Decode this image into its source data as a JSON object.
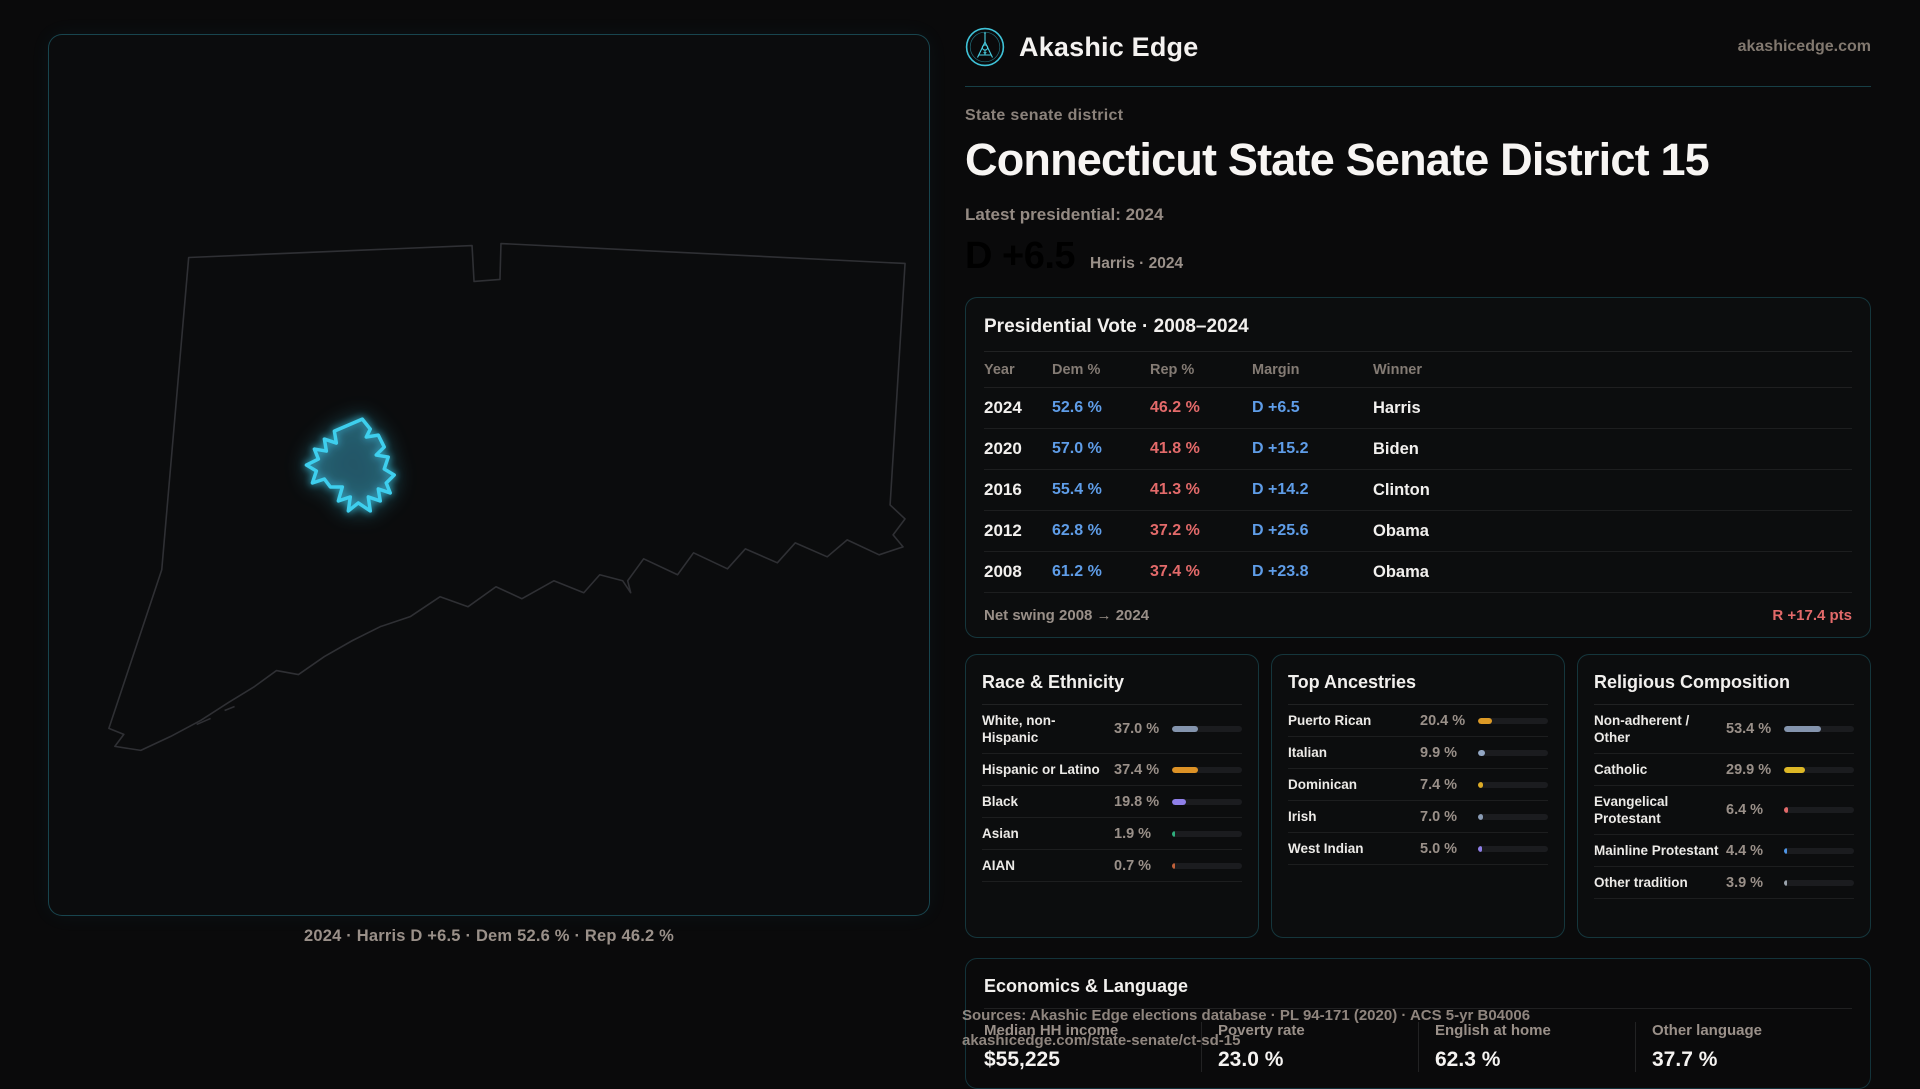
{
  "brand": {
    "name": "Akashic Edge",
    "domain": "akashicedge.com"
  },
  "header": {
    "kicker": "State senate district",
    "title": "Connecticut State Senate District 15",
    "latest_label": "Latest presidential: 2024",
    "margin_value": "D +6.5",
    "margin_context": "Harris · 2024"
  },
  "map": {
    "caption": "2024 · Harris D +6.5 · Dem 52.6 % · Rep 46.2 %",
    "outline_color": "#2f3034",
    "district_color": "#3ecfee",
    "district_fill": "rgba(70,140,180,0.20)"
  },
  "presidential_table": {
    "title": "Presidential Vote · 2008–2024",
    "columns": [
      "Year",
      "Dem %",
      "Rep %",
      "Margin",
      "Winner"
    ],
    "rows": [
      {
        "year": "2024",
        "dem": "52.6 %",
        "rep": "46.2 %",
        "margin": "D +6.5",
        "winner": "Harris"
      },
      {
        "year": "2020",
        "dem": "57.0 %",
        "rep": "41.8 %",
        "margin": "D +15.2",
        "winner": "Biden"
      },
      {
        "year": "2016",
        "dem": "55.4 %",
        "rep": "41.3 %",
        "margin": "D +14.2",
        "winner": "Clinton"
      },
      {
        "year": "2012",
        "dem": "62.8 %",
        "rep": "37.2 %",
        "margin": "D +25.6",
        "winner": "Obama"
      },
      {
        "year": "2008",
        "dem": "61.2 %",
        "rep": "37.4 %",
        "margin": "D +23.8",
        "winner": "Obama"
      }
    ],
    "footer": {
      "label": "Net swing 2008 → 2024",
      "value": "R +17.4 pts"
    }
  },
  "panels": [
    {
      "title": "Race & Ethnicity",
      "rows": [
        {
          "label": "White, non-Hispanic",
          "value": "37.0 %",
          "pct": 37.0,
          "color": "#8494ad"
        },
        {
          "label": "Hispanic or Latino",
          "value": "37.4 %",
          "pct": 37.4,
          "color": "#dd9226"
        },
        {
          "label": "Black",
          "value": "19.8 %",
          "pct": 19.8,
          "color": "#8f7fe8"
        },
        {
          "label": "Asian",
          "value": "1.9 %",
          "pct": 1.9,
          "color": "#2fae7d"
        },
        {
          "label": "AIAN",
          "value": "0.7 %",
          "pct": 0.7,
          "color": "#c0603a"
        }
      ]
    },
    {
      "title": "Top Ancestries",
      "rows": [
        {
          "label": "Puerto Rican",
          "value": "20.4 %",
          "pct": 20.4,
          "color": "#dd9a26"
        },
        {
          "label": "Italian",
          "value": "9.9 %",
          "pct": 9.9,
          "color": "#93a7c4"
        },
        {
          "label": "Dominican",
          "value": "7.4 %",
          "pct": 7.4,
          "color": "#ddab26"
        },
        {
          "label": "Irish",
          "value": "7.0 %",
          "pct": 7.0,
          "color": "#8a9cb5"
        },
        {
          "label": "West Indian",
          "value": "5.0 %",
          "pct": 5.0,
          "color": "#8f7fe8"
        }
      ]
    },
    {
      "title": "Religious Composition",
      "rows": [
        {
          "label": "Non-adherent / Other",
          "value": "53.4 %",
          "pct": 53.4,
          "color": "#8494ad"
        },
        {
          "label": "Catholic",
          "value": "29.9 %",
          "pct": 29.9,
          "color": "#ddb726"
        },
        {
          "label": "Evangelical Protestant",
          "value": "6.4 %",
          "pct": 6.4,
          "color": "#e36a6a"
        },
        {
          "label": "Mainline Protestant",
          "value": "4.4 %",
          "pct": 4.4,
          "color": "#4f96e8"
        },
        {
          "label": "Other tradition",
          "value": "3.9 %",
          "pct": 3.9,
          "color": "#9aa3ad"
        }
      ]
    }
  ],
  "economics": {
    "title": "Economics & Language",
    "stats": [
      {
        "label": "Median HH income",
        "value": "$55,225"
      },
      {
        "label": "Poverty rate",
        "value": "23.0 %"
      },
      {
        "label": "English at home",
        "value": "62.3 %"
      },
      {
        "label": "Other language",
        "value": "37.7 %"
      }
    ]
  },
  "sources": {
    "line1": "Sources: Akashic Edge elections database · PL 94-171 (2020) · ACS 5-yr B04006",
    "line2": "akashicedge.com/state-senate/ct-sd-15"
  },
  "colors": {
    "dem_blue": "#5f9de8",
    "rep_red": "#e36a6a",
    "accent_cyan": "#3ecfee"
  }
}
